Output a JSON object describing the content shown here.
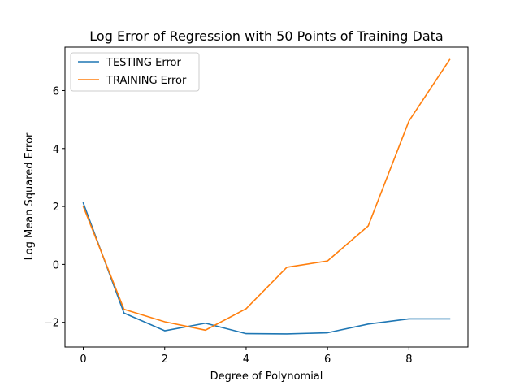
{
  "chart_data": {
    "type": "line",
    "title": "Log Error of Regression with 50 Points of Training Data",
    "xlabel": "Degree of Polynomial",
    "ylabel": "Log Mean Squared Error",
    "x": [
      0,
      1,
      2,
      3,
      4,
      5,
      6,
      7,
      8,
      9
    ],
    "xlim": [
      -0.45,
      9.45
    ],
    "ylim": [
      -2.85,
      7.5
    ],
    "xticks": [
      0,
      2,
      4,
      6,
      8
    ],
    "yticks": [
      -2,
      0,
      2,
      4,
      6
    ],
    "xtick_labels": [
      "0",
      "2",
      "4",
      "6",
      "8"
    ],
    "ytick_labels": [
      "−2",
      "0",
      "2",
      "4",
      "6"
    ],
    "grid": false,
    "legend_position": "top-left",
    "series": [
      {
        "name": "TESTING Error",
        "color": "#1f77b4",
        "values": [
          2.12,
          -1.68,
          -2.29,
          -2.03,
          -2.39,
          -2.4,
          -2.36,
          -2.06,
          -1.88,
          -1.88
        ]
      },
      {
        "name": "TRAINING Error",
        "color": "#ff7f0e",
        "values": [
          2.0,
          -1.55,
          -1.98,
          -2.27,
          -1.53,
          -0.1,
          0.12,
          1.33,
          4.95,
          7.07
        ]
      }
    ]
  }
}
